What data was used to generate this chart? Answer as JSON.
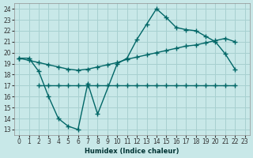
{
  "xlabel": "Humidex (Indice chaleur)",
  "bg_color": "#c8e8e8",
  "grid_color": "#a8d0d0",
  "line_color": "#006666",
  "xlim": [
    -0.5,
    23.5
  ],
  "ylim": [
    12.5,
    24.5
  ],
  "yticks": [
    13,
    14,
    15,
    16,
    17,
    18,
    19,
    20,
    21,
    22,
    23,
    24
  ],
  "xticks": [
    0,
    1,
    2,
    3,
    4,
    5,
    6,
    7,
    8,
    9,
    10,
    11,
    12,
    13,
    14,
    15,
    16,
    17,
    18,
    19,
    20,
    21,
    22,
    23
  ],
  "line1_x": [
    0,
    1,
    2,
    3,
    4,
    5,
    6,
    7,
    8,
    10,
    11,
    12,
    13,
    14,
    15,
    16,
    17,
    18,
    19,
    20,
    21,
    22
  ],
  "line1_y": [
    19.5,
    19.5,
    18.3,
    16.0,
    14.0,
    13.3,
    13.0,
    17.2,
    14.4,
    19.0,
    19.5,
    21.2,
    22.6,
    24.0,
    23.2,
    22.3,
    22.1,
    22.0,
    21.5,
    21.0,
    19.9,
    18.5
  ],
  "line2_x": [
    0,
    1,
    2,
    3,
    4,
    5,
    6,
    7,
    8,
    9,
    10,
    11,
    12,
    13,
    14,
    15,
    16,
    17,
    18,
    19,
    20,
    21,
    22
  ],
  "line2_y": [
    19.5,
    19.3,
    19.1,
    18.9,
    18.7,
    18.5,
    18.4,
    18.5,
    18.7,
    18.9,
    19.1,
    19.4,
    19.6,
    19.8,
    20.0,
    20.2,
    20.4,
    20.6,
    20.7,
    20.9,
    21.1,
    21.3,
    21.0
  ],
  "line3_x": [
    2,
    3,
    4,
    5,
    6,
    7,
    8,
    9,
    10,
    11,
    12,
    13,
    14,
    15,
    16,
    17,
    18,
    19,
    20,
    21,
    22
  ],
  "line3_y": [
    17.0,
    17.0,
    17.0,
    17.0,
    17.0,
    17.0,
    17.0,
    17.0,
    17.0,
    17.0,
    17.0,
    17.0,
    17.0,
    17.0,
    17.0,
    17.0,
    17.0,
    17.0,
    17.0,
    17.0,
    17.0
  ]
}
